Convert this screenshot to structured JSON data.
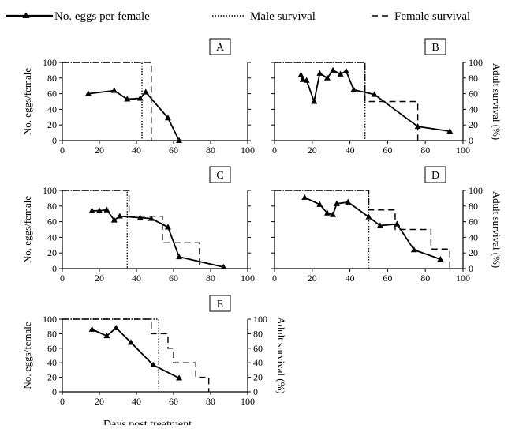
{
  "legend": {
    "eggs": "No. eggs per female",
    "male": "Male survival",
    "female": "Female survival"
  },
  "labels": {
    "y_left": "No. eggs/female",
    "y_right": "Adult survival (%)",
    "x_bottom": "Days post treatment"
  },
  "chart_data": [
    {
      "panel": "A",
      "type": "line",
      "xlim": [
        0,
        100
      ],
      "ylim": [
        0,
        100
      ],
      "x_ticks": [
        0,
        20,
        40,
        60,
        80,
        100
      ],
      "y_left_ticks": [
        0,
        20,
        40,
        60,
        80,
        100
      ],
      "y_right_ticks": [],
      "y_left_label": "No. eggs/female",
      "y_right_label": "",
      "eggs": [
        [
          14,
          60
        ],
        [
          28,
          64
        ],
        [
          35,
          53
        ],
        [
          42,
          54
        ],
        [
          45,
          62
        ],
        [
          57,
          29
        ],
        [
          63,
          0
        ]
      ],
      "male_survival": [
        [
          0,
          100
        ],
        [
          43,
          100
        ],
        [
          43,
          0
        ]
      ],
      "female_survival": [
        [
          0,
          100
        ],
        [
          48,
          100
        ],
        [
          48,
          0
        ]
      ]
    },
    {
      "panel": "B",
      "type": "line",
      "xlim": [
        0,
        100
      ],
      "ylim": [
        0,
        100
      ],
      "x_ticks": [
        0,
        20,
        40,
        60,
        80,
        100
      ],
      "y_left_ticks": [],
      "y_right_ticks": [
        0,
        20,
        40,
        60,
        80,
        100
      ],
      "y_left_label": "",
      "y_right_label": "Adult survival (%)",
      "eggs": [
        [
          14,
          84
        ],
        [
          15,
          78
        ],
        [
          17,
          77
        ],
        [
          21,
          50
        ],
        [
          24,
          86
        ],
        [
          28,
          80
        ],
        [
          31,
          90
        ],
        [
          35,
          85
        ],
        [
          38,
          89
        ],
        [
          42,
          65
        ],
        [
          53,
          59
        ],
        [
          76,
          18
        ],
        [
          93,
          12
        ]
      ],
      "male_survival": [
        [
          0,
          100
        ],
        [
          48,
          100
        ],
        [
          48,
          0
        ]
      ],
      "female_survival": [
        [
          0,
          100
        ],
        [
          48,
          100
        ],
        [
          48,
          50
        ],
        [
          76,
          50
        ],
        [
          76,
          0
        ]
      ]
    },
    {
      "panel": "C",
      "type": "line",
      "xlim": [
        0,
        100
      ],
      "ylim": [
        0,
        100
      ],
      "x_ticks": [
        0,
        20,
        40,
        60,
        80,
        100
      ],
      "y_left_ticks": [
        0,
        20,
        40,
        60,
        80,
        100
      ],
      "y_right_ticks": [],
      "y_left_label": "No. eggs/female",
      "y_right_label": "",
      "eggs": [
        [
          16,
          74
        ],
        [
          20,
          74
        ],
        [
          24,
          75
        ],
        [
          28,
          62
        ],
        [
          31,
          67
        ],
        [
          42,
          65
        ],
        [
          48,
          64
        ],
        [
          57,
          53
        ],
        [
          63,
          15
        ],
        [
          87,
          2
        ]
      ],
      "male_survival": [
        [
          0,
          100
        ],
        [
          35,
          100
        ],
        [
          35,
          0
        ]
      ],
      "female_survival": [
        [
          0,
          100
        ],
        [
          36,
          100
        ],
        [
          36,
          67
        ],
        [
          54,
          67
        ],
        [
          54,
          33
        ],
        [
          74,
          33
        ],
        [
          74,
          0
        ]
      ]
    },
    {
      "panel": "D",
      "type": "line",
      "xlim": [
        0,
        100
      ],
      "ylim": [
        0,
        100
      ],
      "x_ticks": [
        0,
        20,
        40,
        60,
        80,
        100
      ],
      "y_left_ticks": [],
      "y_right_ticks": [
        0,
        20,
        40,
        60,
        80,
        100
      ],
      "y_left_label": "",
      "y_right_label": "Adult survival (%)",
      "eggs": [
        [
          16,
          91
        ],
        [
          24,
          82
        ],
        [
          28,
          71
        ],
        [
          31,
          69
        ],
        [
          33,
          83
        ],
        [
          39,
          85
        ],
        [
          50,
          66
        ],
        [
          56,
          55
        ],
        [
          65,
          57
        ],
        [
          74,
          24
        ],
        [
          88,
          12
        ]
      ],
      "male_survival": [
        [
          0,
          100
        ],
        [
          50,
          100
        ],
        [
          50,
          0
        ]
      ],
      "female_survival": [
        [
          0,
          100
        ],
        [
          50,
          100
        ],
        [
          50,
          75
        ],
        [
          64,
          75
        ],
        [
          64,
          50
        ],
        [
          83,
          50
        ],
        [
          83,
          25
        ],
        [
          93,
          25
        ],
        [
          93,
          0
        ]
      ]
    },
    {
      "panel": "E",
      "type": "line",
      "xlim": [
        0,
        100
      ],
      "ylim": [
        0,
        100
      ],
      "x_ticks": [
        0,
        20,
        40,
        60,
        80,
        100
      ],
      "y_left_ticks": [
        0,
        20,
        40,
        60,
        80,
        100
      ],
      "y_right_ticks": [
        0,
        20,
        40,
        60,
        80,
        100
      ],
      "y_left_label": "No. eggs/female",
      "y_right_label": "Adult survival (%)",
      "eggs": [
        [
          16,
          86
        ],
        [
          24,
          77
        ],
        [
          29,
          88
        ],
        [
          37,
          68
        ],
        [
          49,
          37
        ],
        [
          63,
          19
        ]
      ],
      "male_survival": [
        [
          0,
          100
        ],
        [
          52,
          100
        ],
        [
          52,
          0
        ]
      ],
      "female_survival": [
        [
          0,
          100
        ],
        [
          48,
          100
        ],
        [
          48,
          80
        ],
        [
          57,
          80
        ],
        [
          57,
          60
        ],
        [
          60,
          60
        ],
        [
          60,
          40
        ],
        [
          72,
          40
        ],
        [
          72,
          20
        ],
        [
          79,
          20
        ],
        [
          79,
          0
        ]
      ]
    }
  ]
}
